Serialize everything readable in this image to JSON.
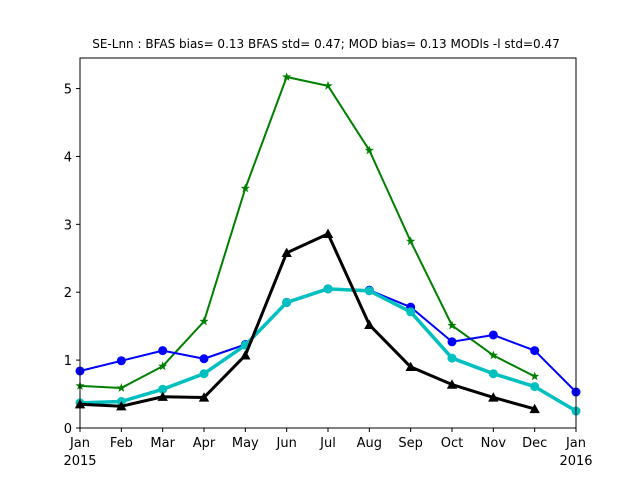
{
  "chart_data": {
    "type": "line",
    "title": "SE-Lnn   : BFAS bias= 0.13 BFAS std= 0.47; MOD bias= 0.13 MODls -l std=0.47",
    "xlabel": "",
    "ylabel": "",
    "x_tick_labels": [
      "Jan",
      "Feb",
      "Mar",
      "Apr",
      "May",
      "Jun",
      "Jul",
      "Aug",
      "Sep",
      "Oct",
      "Nov",
      "Dec",
      "Jan"
    ],
    "x_secondary_labels": {
      "first": "2015",
      "last": "2016"
    },
    "y_ticks": [
      0,
      1,
      2,
      3,
      4,
      5
    ],
    "ylim": [
      0,
      5.45
    ],
    "grid": false,
    "legend": "none",
    "series": [
      {
        "color": "#008000",
        "marker": "star",
        "line_width": 2,
        "x": [
          0,
          1,
          2,
          3,
          4,
          5,
          6,
          7,
          8,
          9,
          10,
          11
        ],
        "values": [
          0.62,
          0.59,
          0.91,
          1.57,
          3.53,
          5.17,
          5.04,
          4.09,
          2.75,
          1.51,
          1.07,
          0.76
        ]
      },
      {
        "color": "#0000ff",
        "marker": "circle",
        "line_width": 2,
        "x": [
          0,
          1,
          2,
          3,
          4,
          5,
          6,
          7,
          8,
          9,
          10,
          11,
          12
        ],
        "values": [
          0.84,
          0.99,
          1.14,
          1.02,
          1.23,
          1.85,
          2.05,
          2.03,
          1.78,
          1.27,
          1.37,
          1.14,
          0.53
        ]
      },
      {
        "color": "#00bfbf",
        "marker": "circle",
        "line_width": 3.5,
        "x": [
          0,
          1,
          2,
          3,
          4,
          5,
          6,
          7,
          8,
          9,
          10,
          11,
          12
        ],
        "values": [
          0.37,
          0.39,
          0.57,
          0.8,
          1.22,
          1.85,
          2.05,
          2.02,
          1.71,
          1.03,
          0.8,
          0.61,
          0.25
        ]
      },
      {
        "color": "#000000",
        "marker": "triangle",
        "line_width": 3,
        "x": [
          0,
          1,
          2,
          3,
          4,
          5,
          6,
          7,
          8,
          9,
          10,
          11
        ],
        "values": [
          0.35,
          0.32,
          0.46,
          0.45,
          1.07,
          2.58,
          2.86,
          1.52,
          0.9,
          0.64,
          0.45,
          0.28
        ]
      }
    ]
  }
}
